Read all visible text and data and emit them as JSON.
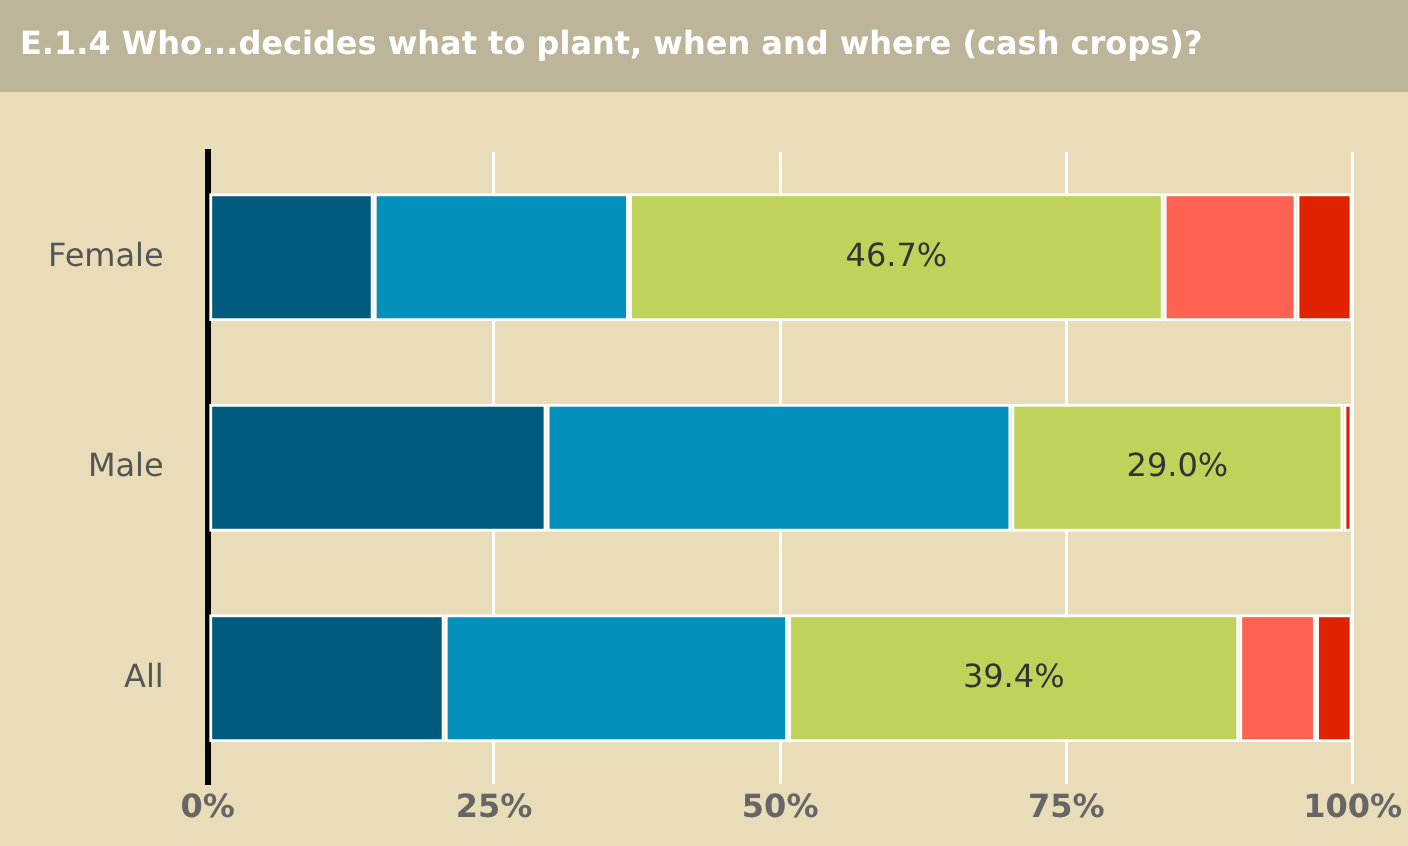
{
  "chart_data": {
    "type": "bar",
    "orientation": "horizontal",
    "stacked": true,
    "title": "E.1.4 Who...decides what to plant, when and where (cash crops)?",
    "categories": [
      "Female",
      "Male",
      "All"
    ],
    "series": [
      {
        "color": "#005b7f",
        "values": [
          14.5,
          29.6,
          20.7
        ]
      },
      {
        "color": "#0391bb",
        "values": [
          22.3,
          40.6,
          30.0
        ]
      },
      {
        "color": "#bfd35a",
        "values": [
          46.7,
          29.0,
          39.4
        ],
        "value_labels": [
          "46.7%",
          "29.0%",
          "39.4%"
        ]
      },
      {
        "color": "#ff6250",
        "values": [
          11.6,
          0,
          6.7
        ]
      },
      {
        "color": "#e02200",
        "values": [
          4.9,
          0.8,
          3.2
        ]
      }
    ],
    "xlim": [
      0,
      100
    ],
    "xticks": [
      {
        "value": 0,
        "label": "0%"
      },
      {
        "value": 25,
        "label": "25%"
      },
      {
        "value": 50,
        "label": "50%"
      },
      {
        "value": 75,
        "label": "75%"
      },
      {
        "value": 100,
        "label": "100%"
      }
    ],
    "grid": "x",
    "legend": false
  }
}
